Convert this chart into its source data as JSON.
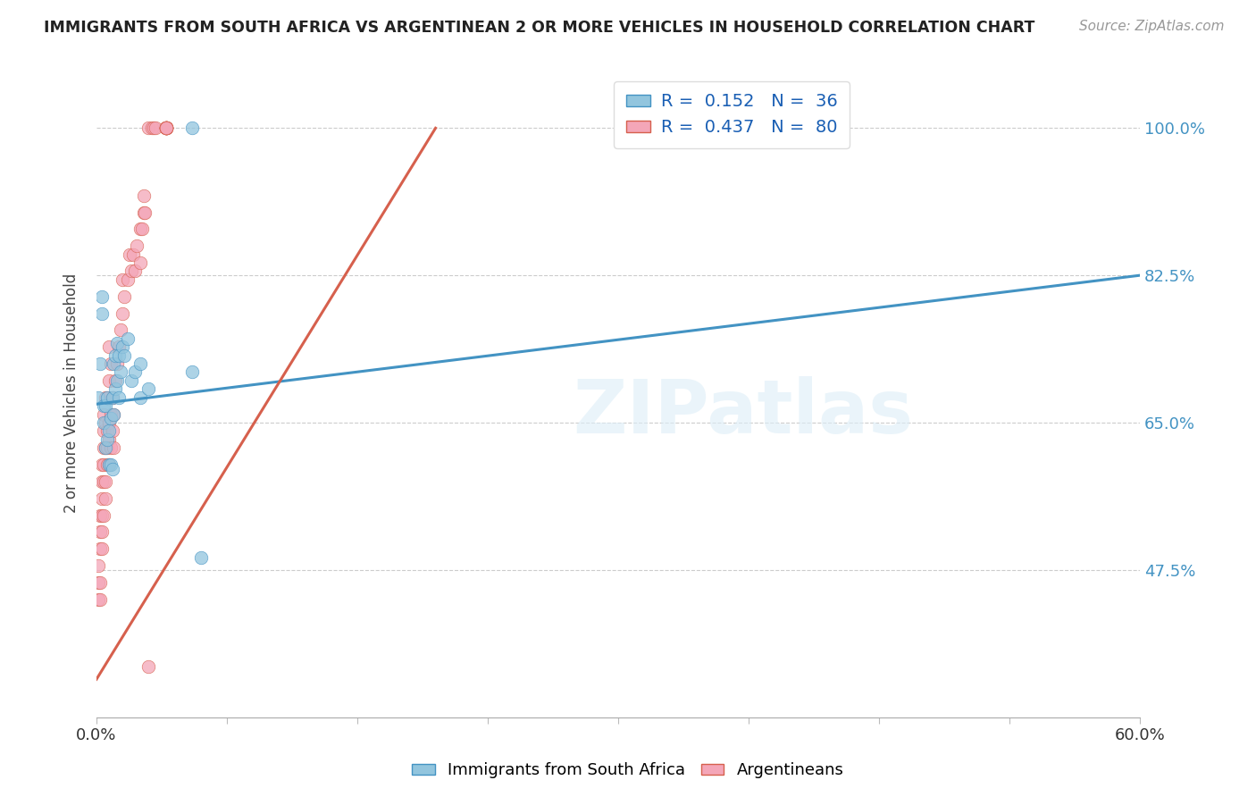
{
  "title": "IMMIGRANTS FROM SOUTH AFRICA VS ARGENTINEAN 2 OR MORE VEHICLES IN HOUSEHOLD CORRELATION CHART",
  "source": "Source: ZipAtlas.com",
  "ylabel_label": "2 or more Vehicles in Household",
  "ytick_labels": [
    "100.0%",
    "82.5%",
    "65.0%",
    "47.5%"
  ],
  "ytick_values": [
    1.0,
    0.825,
    0.65,
    0.475
  ],
  "xmin": 0.0,
  "xmax": 0.6,
  "ymin": 0.3,
  "ymax": 1.07,
  "legend_r_blue": "R =  0.152",
  "legend_n_blue": "N =  36",
  "legend_r_pink": "R =  0.437",
  "legend_n_pink": "N =  80",
  "blue_color": "#92c5de",
  "pink_color": "#f4a6b8",
  "blue_line_color": "#4393c3",
  "pink_line_color": "#d6604d",
  "watermark_text": "ZIPatlas",
  "blue_line_x0": 0.0,
  "blue_line_y0": 0.672,
  "blue_line_x1": 0.6,
  "blue_line_y1": 0.825,
  "pink_line_x0": 0.0,
  "pink_line_x1": 0.195,
  "pink_line_y0": 0.345,
  "pink_line_y1": 1.0,
  "blue_scatter_x": [
    0.001,
    0.002,
    0.003,
    0.003,
    0.004,
    0.004,
    0.005,
    0.005,
    0.006,
    0.006,
    0.007,
    0.007,
    0.008,
    0.008,
    0.009,
    0.009,
    0.01,
    0.01,
    0.011,
    0.011,
    0.012,
    0.012,
    0.013,
    0.013,
    0.014,
    0.015,
    0.016,
    0.018,
    0.02,
    0.022,
    0.025,
    0.025,
    0.03,
    0.055,
    0.055,
    0.06
  ],
  "blue_scatter_y": [
    0.68,
    0.72,
    0.78,
    0.8,
    0.67,
    0.65,
    0.62,
    0.67,
    0.63,
    0.68,
    0.6,
    0.64,
    0.6,
    0.655,
    0.595,
    0.68,
    0.66,
    0.72,
    0.69,
    0.73,
    0.7,
    0.745,
    0.68,
    0.73,
    0.71,
    0.74,
    0.73,
    0.75,
    0.7,
    0.71,
    0.68,
    0.72,
    0.69,
    0.71,
    1.0,
    0.49
  ],
  "pink_scatter_x": [
    0.001,
    0.001,
    0.001,
    0.002,
    0.002,
    0.002,
    0.002,
    0.002,
    0.003,
    0.003,
    0.003,
    0.003,
    0.003,
    0.003,
    0.004,
    0.004,
    0.004,
    0.004,
    0.004,
    0.004,
    0.005,
    0.005,
    0.005,
    0.005,
    0.005,
    0.006,
    0.006,
    0.006,
    0.006,
    0.007,
    0.007,
    0.007,
    0.007,
    0.007,
    0.008,
    0.008,
    0.008,
    0.009,
    0.009,
    0.01,
    0.01,
    0.011,
    0.012,
    0.013,
    0.014,
    0.015,
    0.015,
    0.016,
    0.018,
    0.019,
    0.02,
    0.021,
    0.022,
    0.023,
    0.025,
    0.025,
    0.026,
    0.027,
    0.027,
    0.028,
    0.03,
    0.03,
    0.032,
    0.033,
    0.034,
    0.04,
    0.04,
    0.04,
    0.04,
    0.04,
    0.04,
    0.04,
    0.04,
    0.04,
    0.04,
    0.04,
    0.04,
    0.04,
    0.04,
    0.04
  ],
  "pink_scatter_y": [
    0.44,
    0.46,
    0.48,
    0.44,
    0.46,
    0.5,
    0.52,
    0.54,
    0.5,
    0.52,
    0.54,
    0.56,
    0.58,
    0.6,
    0.54,
    0.58,
    0.6,
    0.62,
    0.64,
    0.66,
    0.56,
    0.58,
    0.62,
    0.65,
    0.68,
    0.6,
    0.62,
    0.64,
    0.68,
    0.6,
    0.63,
    0.65,
    0.7,
    0.74,
    0.62,
    0.66,
    0.72,
    0.64,
    0.68,
    0.62,
    0.66,
    0.7,
    0.72,
    0.74,
    0.76,
    0.78,
    0.82,
    0.8,
    0.82,
    0.85,
    0.83,
    0.85,
    0.83,
    0.86,
    0.84,
    0.88,
    0.88,
    0.9,
    0.92,
    0.9,
    0.36,
    1.0,
    1.0,
    1.0,
    1.0,
    1.0,
    1.0,
    1.0,
    1.0,
    1.0,
    1.0,
    1.0,
    1.0,
    1.0,
    1.0,
    1.0,
    1.0,
    1.0,
    1.0,
    1.0
  ]
}
